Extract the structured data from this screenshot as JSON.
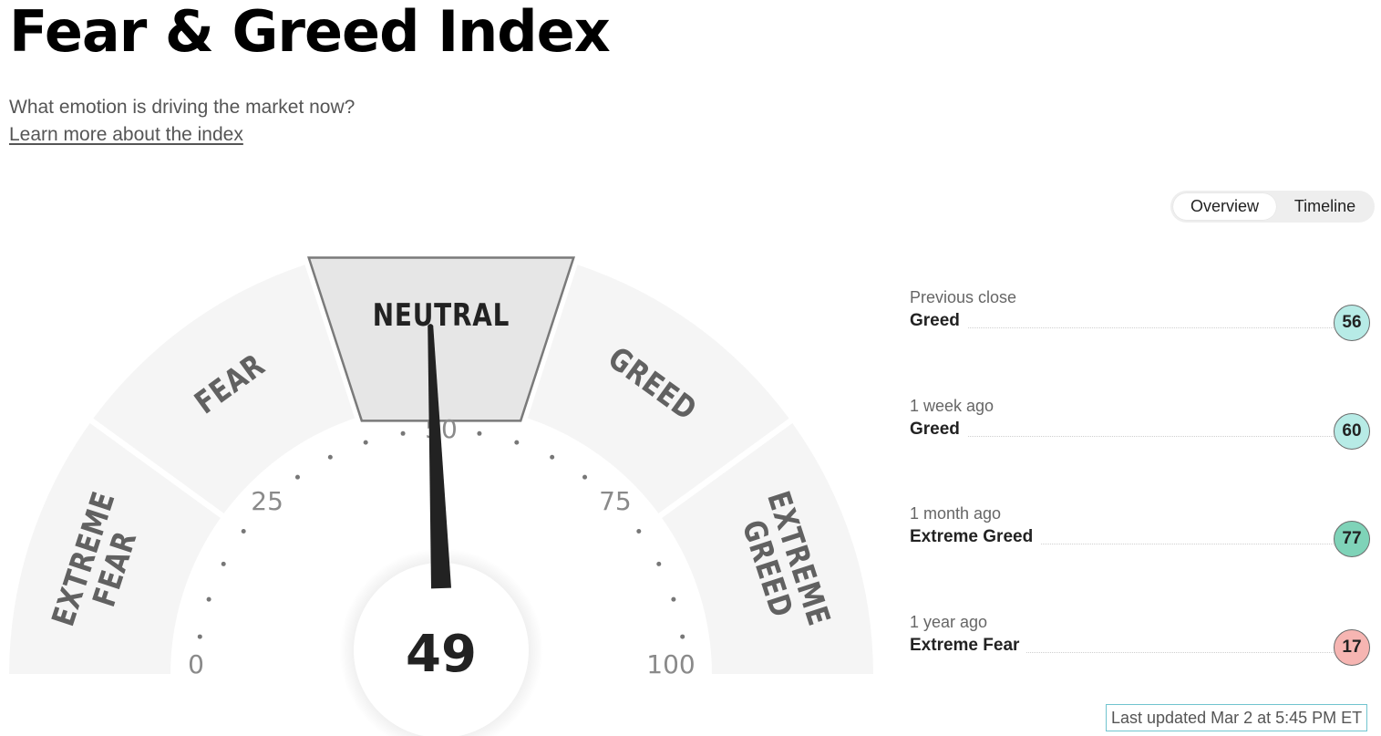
{
  "header": {
    "title": "Fear & Greed Index",
    "subtitle": "What emotion is driving the market now?",
    "learn_more": "Learn more about the index"
  },
  "toggle": {
    "overview": "Overview",
    "timeline": "Timeline",
    "active": "overview"
  },
  "gauge": {
    "value": "49",
    "value_num": 49,
    "min": 0,
    "max": 100,
    "active_segment": "neutral",
    "tick_labels": [
      "0",
      "25",
      "50",
      "75",
      "100"
    ],
    "segments": [
      {
        "key": "extreme-fear",
        "lines": [
          "EXTREME",
          "FEAR"
        ]
      },
      {
        "key": "fear",
        "lines": [
          "FEAR"
        ]
      },
      {
        "key": "neutral",
        "lines": [
          "NEUTRAL"
        ]
      },
      {
        "key": "greed",
        "lines": [
          "GREED"
        ]
      },
      {
        "key": "extreme-greed",
        "lines": [
          "EXTREME",
          "GREED"
        ]
      }
    ]
  },
  "history": [
    {
      "label": "Previous close",
      "rating": "Greed",
      "value": "56",
      "color": "#b7ebe6"
    },
    {
      "label": "1 week ago",
      "rating": "Greed",
      "value": "60",
      "color": "#b7ebe6"
    },
    {
      "label": "1 month ago",
      "rating": "Extreme Greed",
      "value": "77",
      "color": "#7fd3b8"
    },
    {
      "label": "1 year ago",
      "rating": "Extreme Fear",
      "value": "17",
      "color": "#f6b5b2"
    }
  ],
  "last_updated": "Last updated Mar 2 at 5:45 PM ET",
  "colors": {
    "segment_fill": "#f5f5f5",
    "active_fill": "#e6e6e6",
    "active_stroke": "#7a7a7a",
    "segment_text": "#616161",
    "needle": "#222222",
    "border_updated": "#71c4cf"
  }
}
